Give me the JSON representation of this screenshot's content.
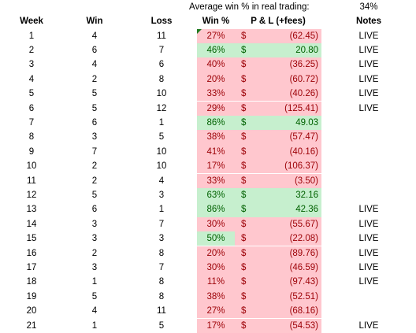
{
  "summary": {
    "label": "Average win % in real trading:",
    "value": "34%"
  },
  "headers": {
    "week": "Week",
    "win": "Win",
    "loss": "Loss",
    "pct": "Win %",
    "pl": "P & L (+fees)",
    "notes": "Notes"
  },
  "currency_symbol": "$",
  "colors": {
    "bad_bg": "#ffc7ce",
    "bad_fg": "#9c0006",
    "good_bg": "#c6efce",
    "good_fg": "#006100"
  },
  "rows": [
    {
      "week": "1",
      "win": "4",
      "loss": "11",
      "pct": "27%",
      "pl": "(62.45)",
      "notes": "LIVE",
      "status": "bad"
    },
    {
      "week": "2",
      "win": "6",
      "loss": "7",
      "pct": "46%",
      "pl": "20.80",
      "notes": "LIVE",
      "status": "good"
    },
    {
      "week": "3",
      "win": "4",
      "loss": "6",
      "pct": "40%",
      "pl": "(36.25)",
      "notes": "LIVE",
      "status": "bad"
    },
    {
      "week": "4",
      "win": "2",
      "loss": "8",
      "pct": "20%",
      "pl": "(60.72)",
      "notes": "LIVE",
      "status": "bad"
    },
    {
      "week": "5",
      "win": "5",
      "loss": "10",
      "pct": "33%",
      "pl": "(40.26)",
      "notes": "LIVE",
      "status": "bad"
    },
    {
      "week": "6",
      "win": "5",
      "loss": "12",
      "pct": "29%",
      "pl": "(125.41)",
      "notes": "LIVE",
      "status": "bad"
    },
    {
      "week": "7",
      "win": "6",
      "loss": "1",
      "pct": "86%",
      "pl": "49.03",
      "notes": "",
      "status": "good"
    },
    {
      "week": "8",
      "win": "3",
      "loss": "5",
      "pct": "38%",
      "pl": "(57.47)",
      "notes": "",
      "status": "bad"
    },
    {
      "week": "9",
      "win": "7",
      "loss": "10",
      "pct": "41%",
      "pl": "(40.16)",
      "notes": "",
      "status": "bad"
    },
    {
      "week": "10",
      "win": "2",
      "loss": "10",
      "pct": "17%",
      "pl": "(106.37)",
      "notes": "",
      "status": "bad"
    },
    {
      "week": "11",
      "win": "2",
      "loss": "4",
      "pct": "33%",
      "pl": "(3.50)",
      "notes": "",
      "status": "bad"
    },
    {
      "week": "12",
      "win": "5",
      "loss": "3",
      "pct": "63%",
      "pl": "32.16",
      "notes": "",
      "status": "good"
    },
    {
      "week": "13",
      "win": "6",
      "loss": "1",
      "pct": "86%",
      "pl": "42.36",
      "notes": "LIVE",
      "status": "good"
    },
    {
      "week": "14",
      "win": "3",
      "loss": "7",
      "pct": "30%",
      "pl": "(55.67)",
      "notes": "LIVE",
      "status": "bad"
    },
    {
      "week": "15",
      "win": "3",
      "loss": "3",
      "pct": "50%",
      "pl": "(22.08)",
      "notes": "LIVE",
      "status": "mixed"
    },
    {
      "week": "16",
      "win": "2",
      "loss": "8",
      "pct": "20%",
      "pl": "(89.76)",
      "notes": "LIVE",
      "status": "bad"
    },
    {
      "week": "17",
      "win": "3",
      "loss": "7",
      "pct": "30%",
      "pl": "(46.59)",
      "notes": "LIVE",
      "status": "bad"
    },
    {
      "week": "18",
      "win": "1",
      "loss": "8",
      "pct": "11%",
      "pl": "(97.43)",
      "notes": "LIVE",
      "status": "bad"
    },
    {
      "week": "19",
      "win": "5",
      "loss": "8",
      "pct": "38%",
      "pl": "(52.51)",
      "notes": "",
      "status": "bad"
    },
    {
      "week": "20",
      "win": "4",
      "loss": "11",
      "pct": "27%",
      "pl": "(68.16)",
      "notes": "",
      "status": "bad"
    },
    {
      "week": "21",
      "win": "1",
      "loss": "5",
      "pct": "17%",
      "pl": "(54.53)",
      "notes": "LIVE",
      "status": "bad"
    }
  ]
}
